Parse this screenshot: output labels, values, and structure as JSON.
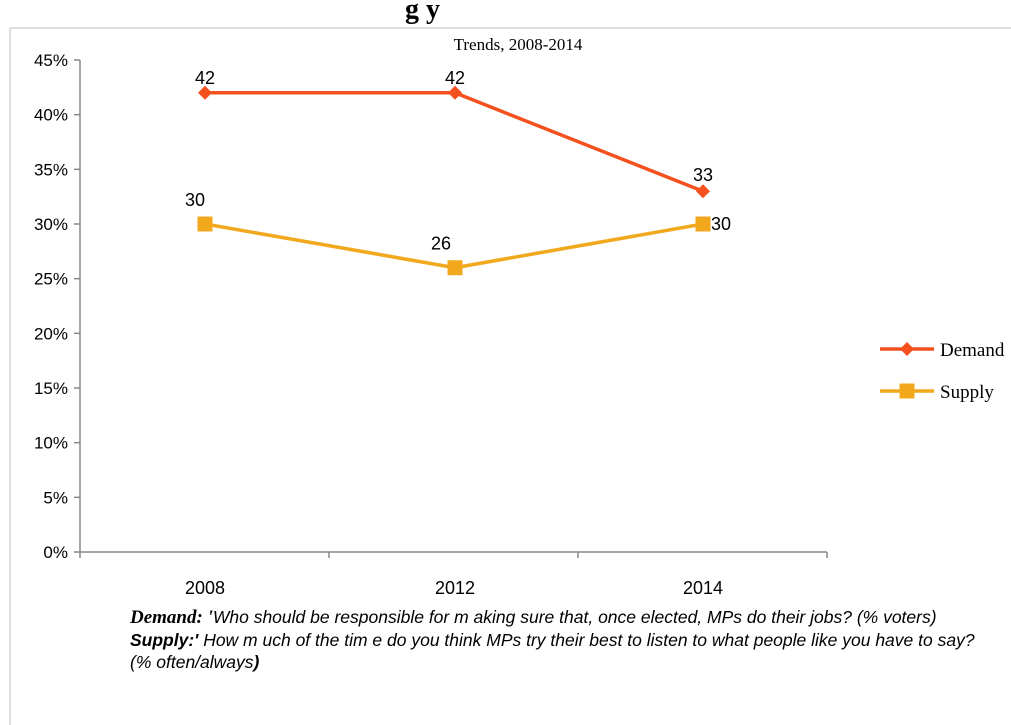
{
  "partial_heading": "g                                          y",
  "chart_data": {
    "type": "line",
    "title": "Trends, 2008-2014",
    "categories": [
      "2008",
      "2012",
      "2014"
    ],
    "y_ticks": [
      "0%",
      "5%",
      "10%",
      "15%",
      "20%",
      "25%",
      "30%",
      "35%",
      "40%",
      "45%"
    ],
    "ylim": [
      0,
      45
    ],
    "grid": false,
    "legend": "right",
    "series": [
      {
        "name": "Demand",
        "values": [
          42,
          42,
          33
        ],
        "labels": [
          "42",
          "42",
          "33"
        ],
        "color": "#F4511E",
        "marker": "diamond"
      },
      {
        "name": "Supply",
        "values": [
          30,
          26,
          30
        ],
        "labels": [
          "30",
          "26",
          "30"
        ],
        "color": "#F2A81D",
        "marker": "square"
      }
    ]
  },
  "notes": {
    "demand_term": "Demand: '",
    "demand_text": "Who should be responsible for m aking sure that, once elected, MPs do their jobs? (% voters)",
    "supply_term": "Supply:'",
    "supply_text": " How m uch of the tim e do you think MPs try their best to listen to what people like you have to say? (% often/always",
    "supply_close": ")"
  }
}
